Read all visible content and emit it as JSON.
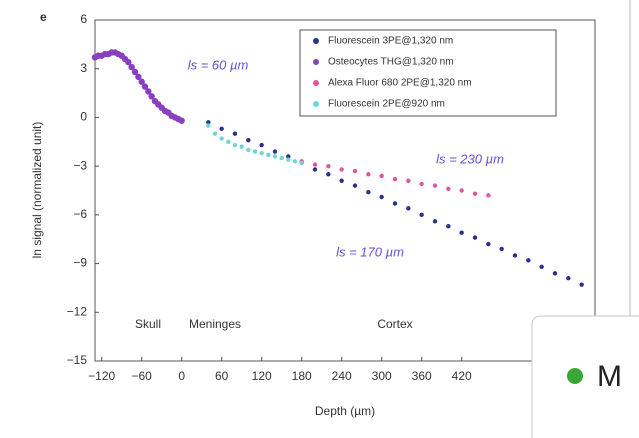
{
  "chart_data": {
    "type": "scatter",
    "panel_label": "e",
    "xlabel": "Depth (µm)",
    "ylabel": "ln signal (normalized unit)",
    "xlim": [
      -130,
      620
    ],
    "ylim": [
      -15,
      6
    ],
    "xticks": [
      {
        "value": -120,
        "label": "−120"
      },
      {
        "value": -60,
        "label": "−60"
      },
      0,
      60,
      120,
      180,
      240,
      300,
      360,
      420
    ],
    "yticks": [
      {
        "value": -15,
        "label": "−15"
      },
      {
        "value": -12,
        "label": "−12"
      },
      {
        "value": -9,
        "label": "−9"
      },
      {
        "value": -6,
        "label": "−6"
      },
      {
        "value": -3,
        "label": "−3"
      },
      0,
      3,
      6
    ],
    "legend": "upper right",
    "series": [
      {
        "name": "Fluorescein 3PE@1,320 nm",
        "color": "#2b2f8f",
        "x": [
          40,
          60,
          80,
          100,
          120,
          140,
          160,
          180,
          200,
          220,
          240,
          260,
          280,
          300,
          320,
          340,
          360,
          380,
          400,
          420,
          440,
          460,
          480,
          500,
          520,
          540,
          560,
          580,
          600
        ],
        "values": [
          -0.3,
          -0.7,
          -1.0,
          -1.4,
          -1.7,
          -2.1,
          -2.4,
          -2.8,
          -3.2,
          -3.5,
          -3.9,
          -4.2,
          -4.6,
          -4.9,
          -5.3,
          -5.6,
          -6.0,
          -6.4,
          -6.7,
          -7.1,
          -7.4,
          -7.8,
          -8.1,
          -8.5,
          -8.8,
          -9.2,
          -9.6,
          -9.9,
          -10.3
        ]
      },
      {
        "name": "Osteocytes THG@1,320 nm",
        "color": "#8a3fc0",
        "x": [
          -130,
          -125,
          -120,
          -115,
          -110,
          -105,
          -100,
          -95,
          -90,
          -85,
          -80,
          -75,
          -70,
          -65,
          -60,
          -55,
          -50,
          -45,
          -40,
          -35,
          -30,
          -25,
          -20,
          -15,
          -10,
          -5,
          0
        ],
        "values": [
          3.7,
          3.8,
          3.8,
          3.9,
          3.9,
          4.0,
          4.0,
          3.9,
          3.8,
          3.6,
          3.4,
          3.1,
          2.8,
          2.5,
          2.2,
          1.9,
          1.6,
          1.3,
          1.0,
          0.8,
          0.6,
          0.4,
          0.3,
          0.1,
          0.0,
          -0.1,
          -0.2
        ]
      },
      {
        "name": "Alexa Fluor 680 2PE@1,320 nm",
        "color": "#e0559e",
        "x": [
          180,
          200,
          220,
          240,
          260,
          280,
          300,
          320,
          340,
          360,
          380,
          400,
          420,
          440,
          460
        ],
        "values": [
          -2.7,
          -2.9,
          -3.0,
          -3.2,
          -3.3,
          -3.5,
          -3.6,
          -3.8,
          -3.9,
          -4.1,
          -4.2,
          -4.4,
          -4.5,
          -4.7,
          -4.8
        ]
      },
      {
        "name": "Fluorescein 2PE@920 nm",
        "color": "#6fd6d0",
        "x": [
          40,
          50,
          60,
          70,
          80,
          90,
          100,
          110,
          120,
          130,
          140,
          150,
          160,
          170,
          180
        ],
        "values": [
          -0.5,
          -1.0,
          -1.3,
          -1.5,
          -1.7,
          -1.8,
          -2.0,
          -2.1,
          -2.2,
          -2.3,
          -2.4,
          -2.5,
          -2.6,
          -2.7,
          -2.8
        ]
      }
    ],
    "annotations": [
      "Skull",
      "Meninges",
      "Cortex",
      "ls = 60 µm",
      "ls = 230 µm",
      "ls = 170 µm"
    ]
  },
  "overlay": {
    "label": "M"
  }
}
